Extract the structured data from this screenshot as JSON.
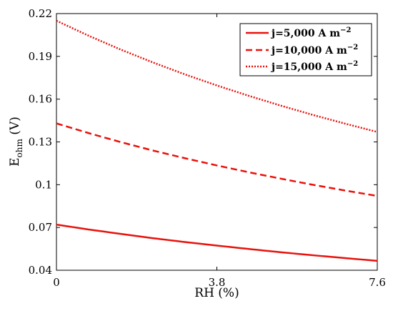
{
  "chart_data": {
    "type": "line",
    "xlabel": "RH (%)",
    "ylabel_main": "E",
    "ylabel_sub": "ohm",
    "ylabel_unit": " (V)",
    "xlim": [
      0,
      7.6
    ],
    "ylim": [
      0.04,
      0.22
    ],
    "xticks": [
      0,
      3.8,
      7.6
    ],
    "xtick_labels": [
      "0",
      "3.8",
      "7.6"
    ],
    "yticks": [
      0.04,
      0.07,
      0.1,
      0.13,
      0.16,
      0.19,
      0.22
    ],
    "ytick_labels": [
      "0.04",
      "0.07",
      "0.1",
      "0.13",
      "0.16",
      "0.19",
      "0.22"
    ],
    "grid": false,
    "legend_position": "top-right",
    "x": [
      0,
      0.76,
      1.52,
      2.28,
      3.04,
      3.8,
      4.56,
      5.32,
      6.08,
      6.84,
      7.6
    ],
    "series": [
      {
        "name": "j=5,000 A m",
        "name_sup": "−2",
        "style": "solid",
        "color": "#e8120c",
        "values": [
          0.072,
          0.0686,
          0.0655,
          0.0625,
          0.0598,
          0.0573,
          0.0549,
          0.0526,
          0.0505,
          0.0485,
          0.0466
        ]
      },
      {
        "name": "j=10,000 A m",
        "name_sup": "−2",
        "style": "dashed",
        "color": "#e8120c",
        "values": [
          0.143,
          0.1362,
          0.1299,
          0.124,
          0.1186,
          0.1135,
          0.1087,
          0.1042,
          0.0999,
          0.0959,
          0.0921
        ]
      },
      {
        "name": "j=15,000 A m",
        "name_sup": "−2",
        "style": "dotted",
        "color": "#e8120c",
        "values": [
          0.215,
          0.2045,
          0.1948,
          0.1858,
          0.1774,
          0.1696,
          0.1623,
          0.1554,
          0.1489,
          0.1428,
          0.137
        ]
      }
    ]
  }
}
